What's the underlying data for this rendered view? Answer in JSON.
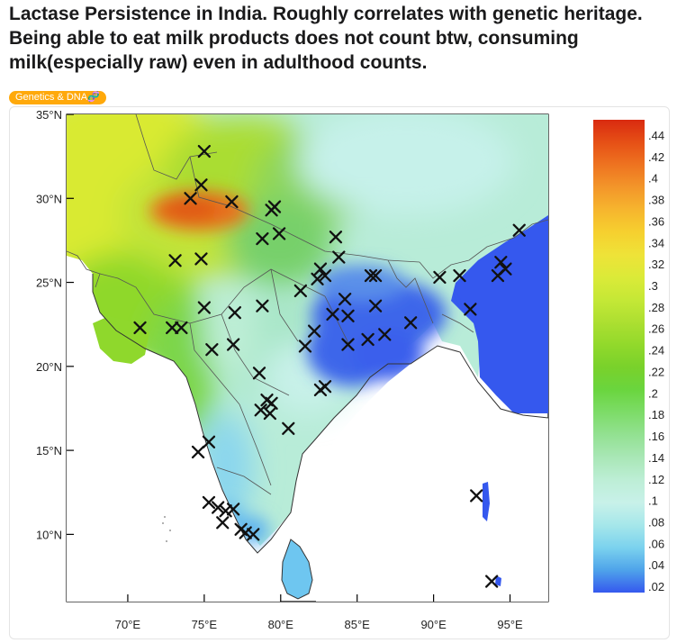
{
  "post": {
    "title": "Lactase Persistence in India. Roughly correlates with genetic heritage. Being able to eat milk products does not count btw, consuming milk(especially raw) even in adulthood counts.",
    "flair": "Genetics & DNA🧬",
    "flair_color": "#ffa90b"
  },
  "map": {
    "lat_ticks": [
      {
        "lat": 35,
        "label": "35°N"
      },
      {
        "lat": 30,
        "label": "30°N"
      },
      {
        "lat": 25,
        "label": "25°N"
      },
      {
        "lat": 20,
        "label": "20°N"
      },
      {
        "lat": 15,
        "label": "15°N"
      },
      {
        "lat": 10,
        "label": "10°N"
      }
    ],
    "lon_ticks": [
      {
        "lon": 70,
        "label": "70°E"
      },
      {
        "lon": 75,
        "label": "75°E"
      },
      {
        "lon": 80,
        "label": "80°E"
      },
      {
        "lon": 85,
        "label": "85°E"
      },
      {
        "lon": 90,
        "label": "90°E"
      },
      {
        "lon": 95,
        "label": "95°E"
      }
    ],
    "extent": {
      "lon_min": 66,
      "lon_max": 97.5,
      "lat_min": 6,
      "lat_max": 35
    },
    "colorbar": {
      "labels": [
        ".44",
        ".42",
        ".4",
        ".38",
        ".36",
        ".34",
        ".32",
        ".3",
        ".28",
        ".26",
        ".24",
        ".22",
        ".2",
        ".18",
        ".16",
        ".14",
        ".12",
        ".1",
        ".08",
        ".06",
        ".04",
        ".02"
      ],
      "colors": [
        "#d92a10",
        "#e65016",
        "#ee7320",
        "#f3962a",
        "#f6b52e",
        "#f6d02f",
        "#eee338",
        "#dbea38",
        "#c5e836",
        "#acdf31",
        "#92d92b",
        "#79d12b",
        "#6ad53e",
        "#7ddc68",
        "#93e192",
        "#a9e7b6",
        "#bdeed6",
        "#c8f1e9",
        "#a6e7ea",
        "#7bd2ee",
        "#4fa4ea",
        "#3558ee"
      ]
    },
    "sample_sites": [
      [
        75.0,
        32.8
      ],
      [
        74.8,
        30.8
      ],
      [
        74.1,
        30.0
      ],
      [
        76.8,
        29.8
      ],
      [
        79.6,
        29.5
      ],
      [
        79.4,
        29.3
      ],
      [
        73.1,
        26.3
      ],
      [
        74.8,
        26.4
      ],
      [
        78.8,
        27.6
      ],
      [
        79.9,
        27.9
      ],
      [
        83.6,
        27.7
      ],
      [
        83.8,
        26.5
      ],
      [
        82.6,
        25.8
      ],
      [
        82.4,
        25.2
      ],
      [
        82.9,
        25.4
      ],
      [
        85.9,
        25.4
      ],
      [
        86.2,
        25.4
      ],
      [
        90.4,
        25.3
      ],
      [
        91.7,
        25.4
      ],
      [
        94.4,
        26.2
      ],
      [
        94.2,
        25.4
      ],
      [
        94.7,
        25.8
      ],
      [
        95.6,
        28.1
      ],
      [
        86.2,
        23.6
      ],
      [
        75.0,
        23.5
      ],
      [
        72.9,
        22.3
      ],
      [
        73.5,
        22.3
      ],
      [
        70.8,
        22.3
      ],
      [
        77.0,
        23.2
      ],
      [
        78.8,
        23.6
      ],
      [
        81.3,
        24.5
      ],
      [
        83.4,
        23.1
      ],
      [
        84.2,
        24.0
      ],
      [
        84.4,
        23.0
      ],
      [
        86.8,
        21.9
      ],
      [
        85.7,
        21.6
      ],
      [
        88.5,
        22.6
      ],
      [
        82.2,
        22.1
      ],
      [
        81.6,
        21.2
      ],
      [
        84.4,
        21.3
      ],
      [
        92.4,
        23.4
      ],
      [
        76.9,
        21.3
      ],
      [
        75.5,
        21.0
      ],
      [
        78.6,
        19.6
      ],
      [
        82.6,
        18.6
      ],
      [
        82.9,
        18.8
      ],
      [
        79.1,
        18.0
      ],
      [
        79.4,
        17.8
      ],
      [
        78.7,
        17.4
      ],
      [
        79.3,
        17.2
      ],
      [
        80.5,
        16.3
      ],
      [
        75.3,
        15.5
      ],
      [
        74.6,
        14.9
      ],
      [
        75.3,
        11.9
      ],
      [
        75.9,
        11.6
      ],
      [
        76.4,
        11.4
      ],
      [
        76.9,
        11.5
      ],
      [
        76.2,
        10.7
      ],
      [
        77.4,
        10.3
      ],
      [
        77.7,
        10.1
      ],
      [
        78.2,
        10.0
      ],
      [
        92.8,
        12.3
      ],
      [
        93.8,
        7.2
      ]
    ]
  }
}
